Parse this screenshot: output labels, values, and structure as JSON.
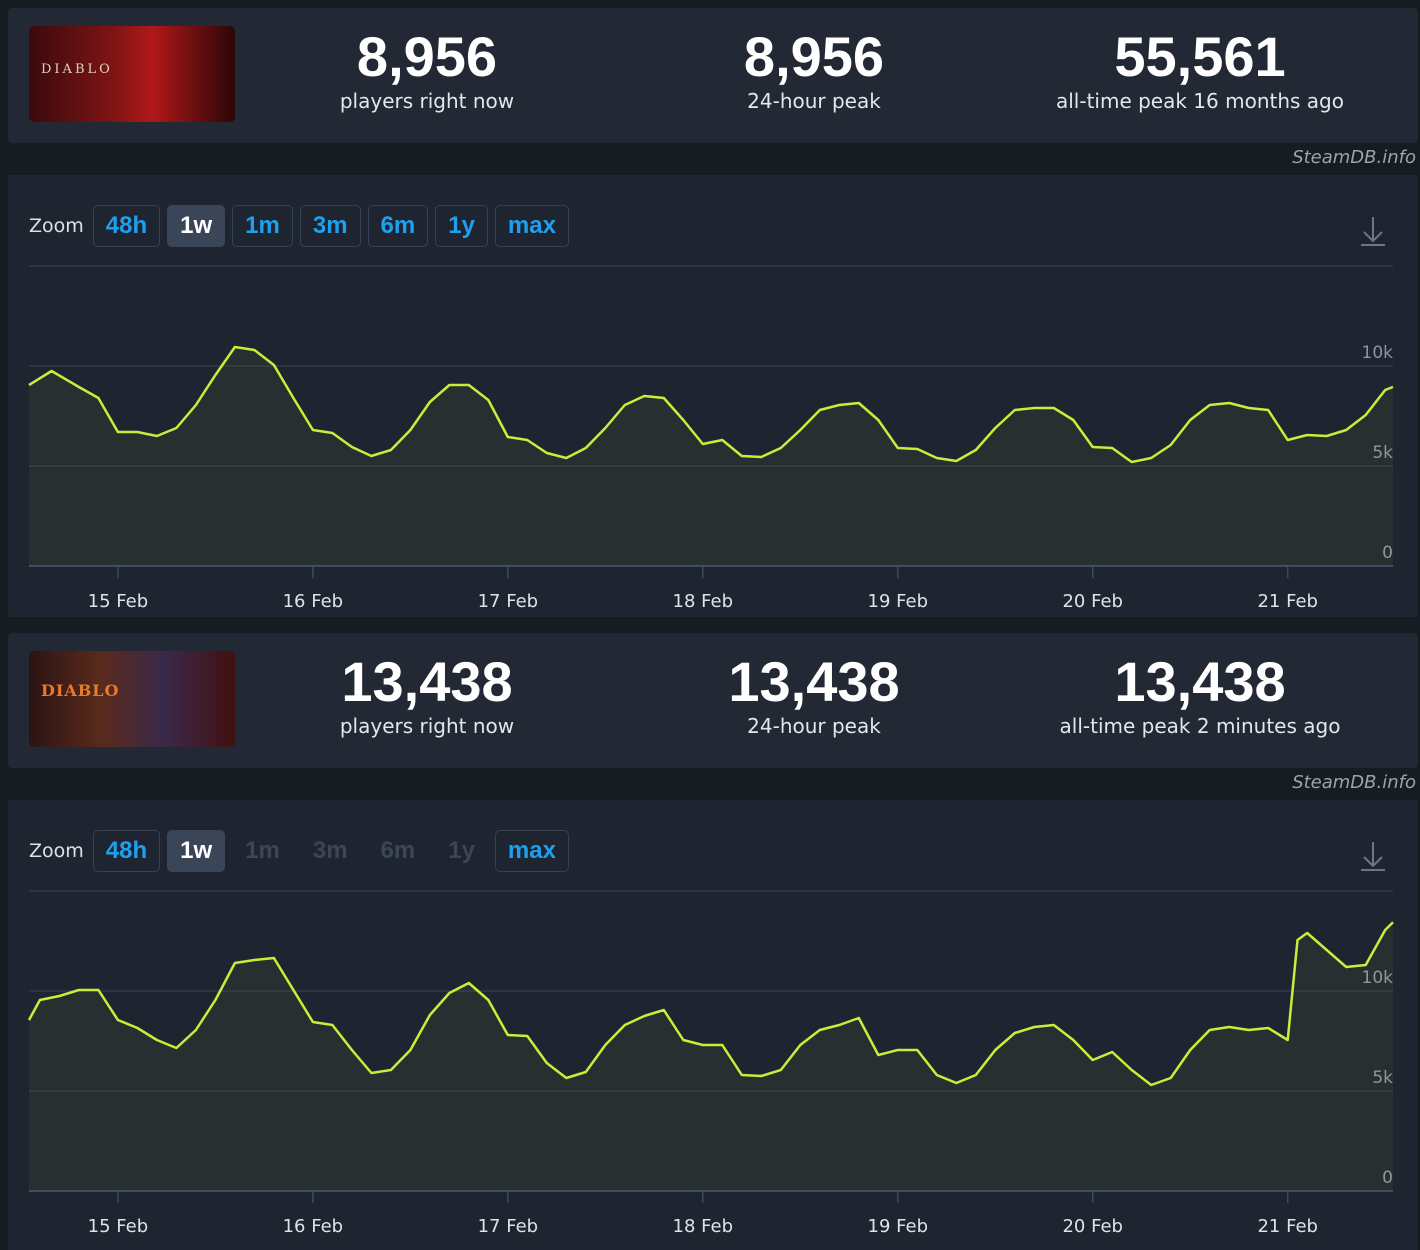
{
  "panels": [
    {
      "logo": "DIABLO",
      "stats": [
        {
          "value": "8,956",
          "label": "players right now"
        },
        {
          "value": "8,956",
          "label": "24-hour peak"
        },
        {
          "value": "55,561",
          "label": "all-time peak 16 months ago"
        }
      ],
      "source": "SteamDB.info",
      "zoom": {
        "label": "Zoom",
        "buttons": [
          {
            "text": "48h",
            "state": "normal"
          },
          {
            "text": "1w",
            "state": "active"
          },
          {
            "text": "1m",
            "state": "normal"
          },
          {
            "text": "3m",
            "state": "normal"
          },
          {
            "text": "6m",
            "state": "normal"
          },
          {
            "text": "1y",
            "state": "normal"
          },
          {
            "text": "max",
            "state": "normal"
          }
        ]
      },
      "chart": {
        "type": "line",
        "color": "#c4f03a",
        "x": [
          -0.456,
          -0.34,
          -0.2,
          -0.1,
          0,
          0.1,
          0.2,
          0.3,
          0.4,
          0.5,
          0.6,
          0.7,
          0.8,
          0.9,
          1.0,
          1.1,
          1.2,
          1.3,
          1.4,
          1.5,
          1.6,
          1.7,
          1.8,
          1.9,
          2.0,
          2.1,
          2.2,
          2.3,
          2.4,
          2.5,
          2.6,
          2.7,
          2.8,
          2.9,
          3.0,
          3.1,
          3.2,
          3.3,
          3.4,
          3.5,
          3.6,
          3.7,
          3.8,
          3.9,
          4.0,
          4.1,
          4.2,
          4.3,
          4.4,
          4.5,
          4.6,
          4.7,
          4.8,
          4.9,
          5.0,
          5.1,
          5.2,
          5.3,
          5.4,
          5.5,
          5.6,
          5.7,
          5.8,
          5.9,
          6.0,
          6.1,
          6.2,
          6.3,
          6.4,
          6.5,
          6.54
        ],
        "values": [
          9050,
          9750,
          8950,
          8400,
          6700,
          6700,
          6500,
          6900,
          8050,
          9550,
          10950,
          10800,
          10050,
          8400,
          6800,
          6650,
          5950,
          5500,
          5800,
          6800,
          8200,
          9050,
          9050,
          8300,
          6450,
          6300,
          5650,
          5400,
          5900,
          6900,
          8050,
          8500,
          8400,
          7300,
          6100,
          6300,
          5500,
          5450,
          5900,
          6800,
          7800,
          8050,
          8150,
          7300,
          5900,
          5850,
          5400,
          5250,
          5800,
          6900,
          7800,
          7900,
          7900,
          7300,
          5950,
          5900,
          5200,
          5400,
          6050,
          7300,
          8050,
          8150,
          7900,
          7800,
          6300,
          6550,
          6500,
          6800,
          7550,
          8800,
          8956
        ],
        "xlim": [
          -0.456,
          6.54
        ],
        "xticks": [
          {
            "value": 0,
            "label": "15 Feb"
          },
          {
            "value": 1,
            "label": "16 Feb"
          },
          {
            "value": 2,
            "label": "17 Feb"
          },
          {
            "value": 3,
            "label": "18 Feb"
          },
          {
            "value": 4,
            "label": "19 Feb"
          },
          {
            "value": 5,
            "label": "20 Feb"
          },
          {
            "value": 6,
            "label": "21 Feb"
          }
        ],
        "ylim": [
          0,
          15000
        ],
        "yticks": [
          {
            "value": 0,
            "label": "0"
          },
          {
            "value": 5000,
            "label": "5k"
          },
          {
            "value": 10000,
            "label": "10k"
          }
        ],
        "grid": true
      }
    },
    {
      "logo": "DIABLO",
      "stats": [
        {
          "value": "13,438",
          "label": "players right now"
        },
        {
          "value": "13,438",
          "label": "24-hour peak"
        },
        {
          "value": "13,438",
          "label": "all-time peak 2 minutes ago"
        }
      ],
      "source": "SteamDB.info",
      "zoom": {
        "label": "Zoom",
        "buttons": [
          {
            "text": "48h",
            "state": "normal"
          },
          {
            "text": "1w",
            "state": "active"
          },
          {
            "text": "1m",
            "state": "disabled"
          },
          {
            "text": "3m",
            "state": "disabled"
          },
          {
            "text": "6m",
            "state": "disabled"
          },
          {
            "text": "1y",
            "state": "disabled"
          },
          {
            "text": "max",
            "state": "normal"
          }
        ]
      },
      "chart": {
        "type": "line",
        "color": "#c4f03a",
        "x": [
          -0.456,
          -0.4,
          -0.3,
          -0.2,
          -0.1,
          0,
          0.1,
          0.2,
          0.3,
          0.4,
          0.5,
          0.6,
          0.7,
          0.8,
          0.9,
          1.0,
          1.1,
          1.2,
          1.3,
          1.4,
          1.5,
          1.6,
          1.7,
          1.8,
          1.9,
          2.0,
          2.1,
          2.2,
          2.3,
          2.4,
          2.5,
          2.6,
          2.7,
          2.8,
          2.9,
          3.0,
          3.1,
          3.2,
          3.3,
          3.4,
          3.5,
          3.6,
          3.7,
          3.8,
          3.9,
          4.0,
          4.1,
          4.2,
          4.3,
          4.4,
          4.5,
          4.6,
          4.7,
          4.8,
          4.9,
          5.0,
          5.1,
          5.2,
          5.3,
          5.4,
          5.5,
          5.6,
          5.7,
          5.8,
          5.9,
          6.0,
          6.05,
          6.1,
          6.2,
          6.3,
          6.4,
          6.5,
          6.54
        ],
        "values": [
          8550,
          9550,
          9750,
          10050,
          10050,
          8550,
          8150,
          7550,
          7150,
          8050,
          9550,
          11400,
          11550,
          11650,
          10050,
          8450,
          8300,
          7050,
          5900,
          6050,
          7050,
          8800,
          9900,
          10400,
          9550,
          7800,
          7750,
          6400,
          5650,
          5950,
          7300,
          8300,
          8750,
          9050,
          7550,
          7300,
          7300,
          5800,
          5750,
          6050,
          7300,
          8050,
          8300,
          8650,
          6800,
          7050,
          7050,
          5800,
          5400,
          5800,
          7050,
          7900,
          8200,
          8300,
          7550,
          6550,
          6950,
          6050,
          5300,
          5650,
          7050,
          8050,
          8200,
          8050,
          8150,
          7550,
          12550,
          12900,
          12050,
          11200,
          11300,
          13050,
          13438
        ],
        "xlim": [
          -0.456,
          6.54
        ],
        "xticks": [
          {
            "value": 0,
            "label": "15 Feb"
          },
          {
            "value": 1,
            "label": "16 Feb"
          },
          {
            "value": 2,
            "label": "17 Feb"
          },
          {
            "value": 3,
            "label": "18 Feb"
          },
          {
            "value": 4,
            "label": "19 Feb"
          },
          {
            "value": 5,
            "label": "20 Feb"
          },
          {
            "value": 6,
            "label": "21 Feb"
          }
        ],
        "ylim": [
          0,
          15000
        ],
        "yticks": [
          {
            "value": 0,
            "label": "0"
          },
          {
            "value": 5000,
            "label": "5k"
          },
          {
            "value": 10000,
            "label": "10k"
          }
        ],
        "grid": true
      }
    }
  ]
}
